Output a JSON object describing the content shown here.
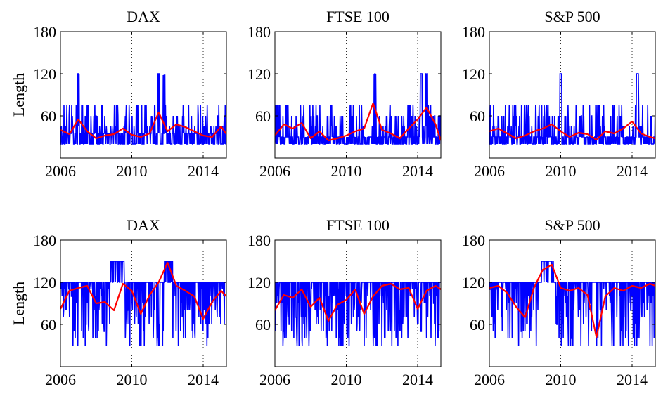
{
  "colors": {
    "raw": "#0000ff",
    "smooth": "#ff0000",
    "axis": "#000000",
    "grid": "#000000"
  },
  "chart_data": [
    {
      "type": "line",
      "title": "DAX",
      "ylabel": "Length",
      "xlim": [
        2006,
        2015.3
      ],
      "ylim": [
        0,
        180
      ],
      "xticks": [
        2006,
        2010,
        2014
      ],
      "yticks": [
        60,
        120,
        180
      ],
      "grid": "x-dotted",
      "series": [
        {
          "role": "raw",
          "base": 35,
          "spike_prob": 0.22,
          "spike_range": [
            45,
            75
          ],
          "low": 20,
          "peaks": [
            {
              "t": 2007.0,
              "v": 120
            },
            {
              "t": 2011.5,
              "v": 120
            },
            {
              "t": 2011.8,
              "v": 118
            }
          ]
        },
        {
          "role": "smooth",
          "x": [
            2006,
            2006.5,
            2007.0,
            2007.5,
            2008.0,
            2008.5,
            2009.0,
            2009.5,
            2010.0,
            2010.5,
            2011.0,
            2011.5,
            2012.0,
            2012.5,
            2013.0,
            2013.5,
            2014.0,
            2014.5,
            2015.0,
            2015.3
          ],
          "y": [
            40,
            34,
            55,
            38,
            28,
            32,
            34,
            42,
            33,
            30,
            35,
            65,
            38,
            48,
            44,
            38,
            32,
            30,
            45,
            34
          ]
        }
      ]
    },
    {
      "type": "line",
      "title": "FTSE 100",
      "ylabel": "",
      "xlim": [
        2006,
        2015.3
      ],
      "ylim": [
        0,
        180
      ],
      "xticks": [
        2006,
        2010,
        2014
      ],
      "yticks": [
        60,
        120,
        180
      ],
      "grid": "x-dotted",
      "series": [
        {
          "role": "raw",
          "base": 30,
          "spike_prob": 0.22,
          "spike_range": [
            45,
            75
          ],
          "low": 20,
          "peaks": [
            {
              "t": 2011.6,
              "v": 120
            },
            {
              "t": 2014.2,
              "v": 120
            },
            {
              "t": 2014.5,
              "v": 120
            }
          ]
        },
        {
          "role": "smooth",
          "x": [
            2006,
            2006.5,
            2007.0,
            2007.5,
            2008.0,
            2008.5,
            2009.0,
            2009.5,
            2010.0,
            2010.5,
            2011.0,
            2011.5,
            2012.0,
            2012.5,
            2013.0,
            2013.5,
            2014.0,
            2014.5,
            2015.0,
            2015.3
          ],
          "y": [
            32,
            48,
            42,
            50,
            28,
            38,
            25,
            28,
            32,
            38,
            42,
            78,
            40,
            35,
            28,
            42,
            55,
            72,
            48,
            25
          ]
        }
      ]
    },
    {
      "type": "line",
      "title": "S&P 500",
      "ylabel": "",
      "xlim": [
        2006,
        2015.3
      ],
      "ylim": [
        0,
        180
      ],
      "xticks": [
        2006,
        2010,
        2014
      ],
      "yticks": [
        60,
        120,
        180
      ],
      "grid": "x-dotted",
      "series": [
        {
          "role": "raw",
          "base": 30,
          "spike_prob": 0.22,
          "spike_range": [
            45,
            75
          ],
          "low": 20,
          "peaks": [
            {
              "t": 2010.0,
              "v": 120
            },
            {
              "t": 2014.3,
              "v": 120
            }
          ]
        },
        {
          "role": "smooth",
          "x": [
            2006,
            2006.5,
            2007.0,
            2007.5,
            2008.0,
            2008.5,
            2009.0,
            2009.5,
            2010.0,
            2010.5,
            2011.0,
            2011.5,
            2012.0,
            2012.5,
            2013.0,
            2013.5,
            2014.0,
            2014.5,
            2015.0,
            2015.3
          ],
          "y": [
            38,
            42,
            35,
            28,
            32,
            38,
            42,
            48,
            38,
            30,
            36,
            34,
            26,
            38,
            35,
            42,
            52,
            35,
            30,
            28
          ]
        }
      ]
    },
    {
      "type": "line",
      "title": "DAX",
      "ylabel": "Length",
      "xlim": [
        2006,
        2015.3
      ],
      "ylim": [
        0,
        180
      ],
      "xticks": [
        2006,
        2010,
        2014
      ],
      "yticks": [
        60,
        120,
        180
      ],
      "grid": "x-dotted",
      "series": [
        {
          "role": "raw",
          "base": 120,
          "drop_prob": 0.35,
          "drop_range": [
            30,
            110
          ],
          "plateaus": [
            {
              "from": 2008.8,
              "to": 2009.6,
              "v": 150
            },
            {
              "from": 2011.8,
              "to": 2012.3,
              "v": 150
            }
          ]
        },
        {
          "role": "smooth",
          "x": [
            2006,
            2006.5,
            2007.0,
            2007.5,
            2008.0,
            2008.5,
            2009.0,
            2009.5,
            2010.0,
            2010.5,
            2011.0,
            2011.5,
            2012.0,
            2012.5,
            2013.0,
            2013.5,
            2014.0,
            2014.5,
            2015.0,
            2015.3
          ],
          "y": [
            82,
            108,
            112,
            115,
            90,
            92,
            80,
            118,
            108,
            75,
            102,
            120,
            148,
            115,
            108,
            100,
            68,
            92,
            108,
            100
          ]
        }
      ]
    },
    {
      "type": "line",
      "title": "FTSE 100",
      "ylabel": "",
      "xlim": [
        2006,
        2015.3
      ],
      "ylim": [
        0,
        180
      ],
      "xticks": [
        2006,
        2010,
        2014
      ],
      "yticks": [
        60,
        120,
        180
      ],
      "grid": "x-dotted",
      "series": [
        {
          "role": "raw",
          "base": 120,
          "drop_prob": 0.35,
          "drop_range": [
            30,
            110
          ],
          "plateaus": []
        },
        {
          "role": "smooth",
          "x": [
            2006,
            2006.5,
            2007.0,
            2007.5,
            2008.0,
            2008.5,
            2009.0,
            2009.5,
            2010.0,
            2010.5,
            2011.0,
            2011.5,
            2012.0,
            2012.5,
            2013.0,
            2013.5,
            2014.0,
            2014.5,
            2015.0,
            2015.3
          ],
          "y": [
            80,
            102,
            98,
            110,
            85,
            98,
            65,
            88,
            95,
            110,
            75,
            100,
            115,
            118,
            110,
            112,
            82,
            108,
            115,
            110
          ]
        }
      ]
    },
    {
      "type": "line",
      "title": "S&P 500",
      "ylabel": "",
      "xlim": [
        2006,
        2015.3
      ],
      "ylim": [
        0,
        180
      ],
      "xticks": [
        2006,
        2010,
        2014
      ],
      "yticks": [
        60,
        120,
        180
      ],
      "grid": "x-dotted",
      "series": [
        {
          "role": "raw",
          "base": 120,
          "drop_prob": 0.3,
          "drop_range": [
            30,
            110
          ],
          "plateaus": [
            {
              "from": 2008.9,
              "to": 2009.6,
              "v": 150
            }
          ]
        },
        {
          "role": "smooth",
          "x": [
            2006,
            2006.5,
            2007.0,
            2007.5,
            2008.0,
            2008.5,
            2009.0,
            2009.5,
            2010.0,
            2010.5,
            2011.0,
            2011.5,
            2012.0,
            2012.5,
            2013.0,
            2013.5,
            2014.0,
            2014.5,
            2015.0,
            2015.3
          ],
          "y": [
            112,
            115,
            105,
            85,
            70,
            112,
            138,
            145,
            112,
            108,
            112,
            102,
            42,
            100,
            112,
            108,
            115,
            112,
            118,
            115
          ]
        }
      ]
    }
  ]
}
